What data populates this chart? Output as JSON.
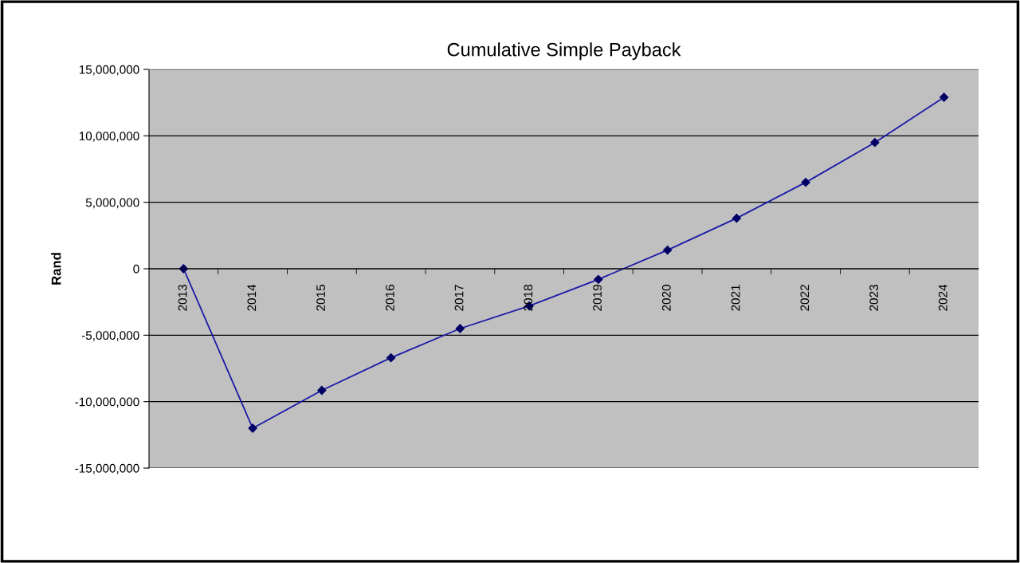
{
  "chart_data": {
    "type": "line",
    "title": "Cumulative Simple Payback",
    "ylabel": "Rand",
    "categories": [
      "2013",
      "2014",
      "2015",
      "2016",
      "2017",
      "2018",
      "2019",
      "2020",
      "2021",
      "2022",
      "2023",
      "2024"
    ],
    "series": [
      {
        "color": "#1a1aa6",
        "values": [
          0,
          -12000000,
          -9150000,
          -6700000,
          -4500000,
          -2800000,
          -800000,
          1400000,
          3800000,
          6500000,
          9500000,
          12900000
        ]
      }
    ],
    "ylim": [
      -15000000,
      15000000
    ],
    "yticks": [
      {
        "value": -15000000,
        "label": "-15,000,000"
      },
      {
        "value": -10000000,
        "label": "-10,000,000"
      },
      {
        "value": -5000000,
        "label": "-5,000,000"
      },
      0,
      {
        "value": 5000000,
        "label": "5,000,000"
      },
      {
        "value": 10000000,
        "label": "10,000,000"
      },
      {
        "value": 15000000,
        "label": "15,000,000"
      }
    ],
    "grid": "y",
    "marker": "diamond",
    "line_style": "solid",
    "legend": false
  }
}
